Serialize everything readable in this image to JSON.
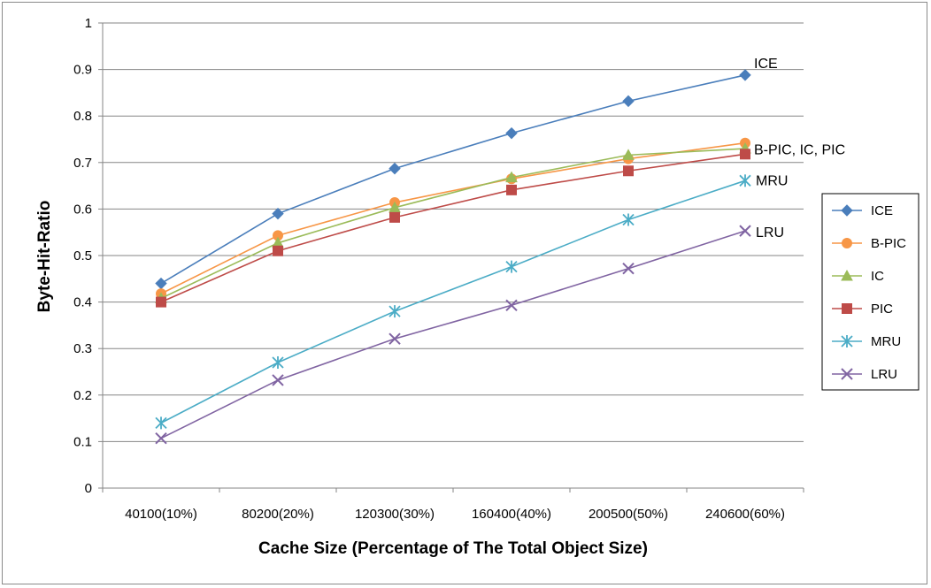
{
  "chart_data": {
    "type": "line",
    "title": "",
    "xlabel": "Cache Size (Percentage of The Total Object Size)",
    "ylabel": "Byte-Hit-Ratio",
    "ylim": [
      0,
      1
    ],
    "yticks": [
      "0",
      "0.1",
      "0.2",
      "0.3",
      "0.4",
      "0.5",
      "0.6",
      "0.7",
      "0.8",
      "0.9",
      "1"
    ],
    "categories": [
      "40100(10%)",
      "80200(20%)",
      "120300(30%)",
      "160400(40%)",
      "200500(50%)",
      "240600(60%)"
    ],
    "grid": "horizontal",
    "legend": "right",
    "series": [
      {
        "name": "ICE",
        "marker": "diamond",
        "color": "#4a7ebb",
        "values": [
          0.44,
          0.59,
          0.687,
          0.763,
          0.832,
          0.888
        ]
      },
      {
        "name": "B-PIC",
        "marker": "circle",
        "color": "#f79646",
        "values": [
          0.418,
          0.543,
          0.614,
          0.665,
          0.708,
          0.742
        ]
      },
      {
        "name": "IC",
        "marker": "triangle",
        "color": "#9bbb59",
        "values": [
          0.408,
          0.527,
          0.603,
          0.668,
          0.716,
          0.73
        ]
      },
      {
        "name": "PIC",
        "marker": "square",
        "color": "#be4b48",
        "values": [
          0.4,
          0.51,
          0.582,
          0.641,
          0.682,
          0.718
        ]
      },
      {
        "name": "MRU",
        "marker": "asterisk",
        "color": "#4bacc6",
        "values": [
          0.14,
          0.27,
          0.38,
          0.476,
          0.577,
          0.661
        ]
      },
      {
        "name": "LRU",
        "marker": "x",
        "color": "#8064a2",
        "values": [
          0.107,
          0.232,
          0.321,
          0.393,
          0.472,
          0.553
        ]
      }
    ],
    "annotations": [
      {
        "text": "ICE",
        "near_series": "ICE"
      },
      {
        "text": "B-PIC, IC, PIC",
        "near_series": "B-PIC"
      },
      {
        "text": "MRU",
        "near_series": "MRU"
      },
      {
        "text": "LRU",
        "near_series": "LRU"
      }
    ]
  }
}
